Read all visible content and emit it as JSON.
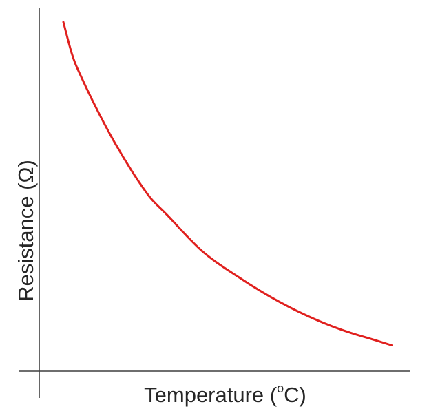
{
  "chart_data": {
    "type": "line",
    "title": "",
    "xlabel": "Temperature (",
    "xlabel_sup": "o",
    "xlabel_end": "C)",
    "ylabel": "Resistance (Ω)",
    "ticks": "none",
    "grid": false,
    "legend": "none",
    "xlim": [
      0,
      10
    ],
    "ylim": [
      0,
      10
    ],
    "colors": {
      "curve": "#e0201e",
      "axes": "#3f3f3f",
      "text": "#262626"
    },
    "series": [
      {
        "x": [
          0,
          0.25,
          0.5,
          1,
          1.5,
          2,
          2.5,
          3,
          4,
          5,
          6,
          7,
          8,
          9,
          9.5
        ],
        "y": [
          9.6,
          8.7,
          8.1,
          7.1,
          6.2,
          5.4,
          4.7,
          4.2,
          3.2,
          2.5,
          1.9,
          1.4,
          1.0,
          0.7,
          0.55
        ]
      }
    ]
  }
}
